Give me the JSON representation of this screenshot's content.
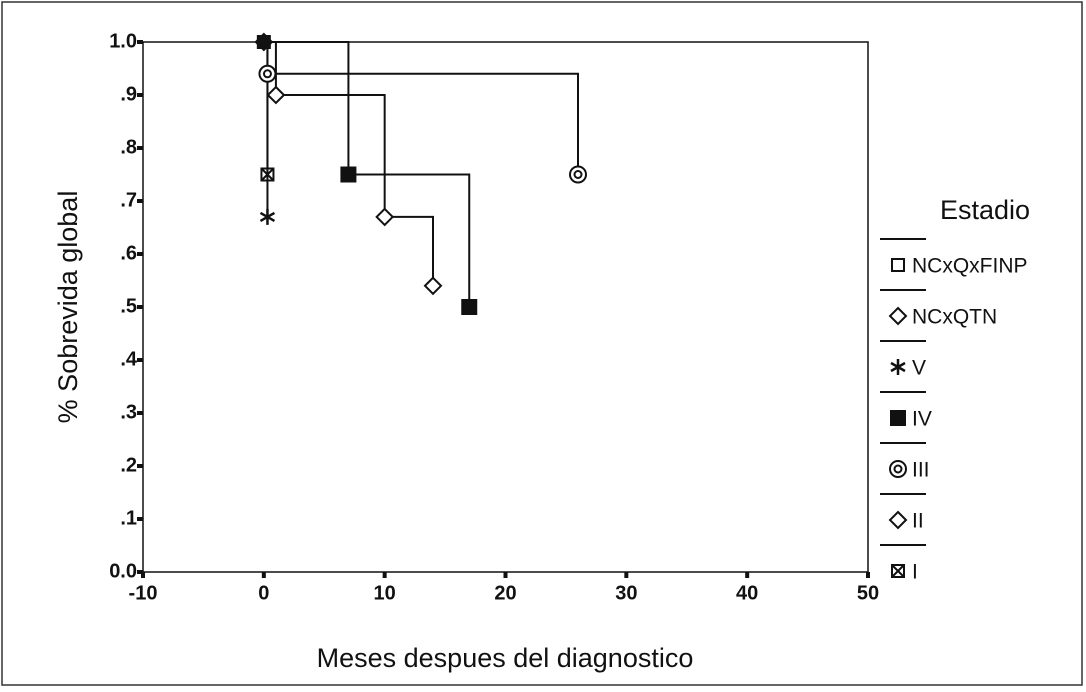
{
  "chart_data": {
    "type": "kaplan-meier",
    "xlabel": "Meses despues del diagnostico",
    "ylabel": "% Sobrevida global",
    "legend_title": "Estadio",
    "legend_position": "right",
    "xlim": [
      -10,
      50
    ],
    "ylim": [
      0,
      1
    ],
    "xticks": [
      -10,
      0,
      10,
      20,
      30,
      40,
      50
    ],
    "yticks": [
      {
        "value": 0,
        "label": "0.0"
      },
      {
        "value": 0.1,
        "label": ".1"
      },
      {
        "value": 0.2,
        "label": ".2"
      },
      {
        "value": 0.3,
        "label": ".3"
      },
      {
        "value": 0.4,
        "label": ".4"
      },
      {
        "value": 0.5,
        "label": ".5"
      },
      {
        "value": 0.6,
        "label": ".6"
      },
      {
        "value": 0.7,
        "label": ".7"
      },
      {
        "value": 0.8,
        "label": ".8"
      },
      {
        "value": 0.9,
        "label": ".9"
      },
      {
        "value": 1,
        "label": "1.0"
      }
    ],
    "series": [
      {
        "name": "NCxQxFINP",
        "marker": "square-open",
        "color": "#111111",
        "x": [
          0
        ],
        "values": [
          1
        ]
      },
      {
        "name": "NCxQTN",
        "marker": "diamond",
        "color": "#111111",
        "x": [
          0
        ],
        "values": [
          1
        ]
      },
      {
        "name": "V",
        "marker": "asterisk",
        "color": "#111111",
        "x": [
          0,
          0.3
        ],
        "values": [
          1,
          0.67
        ]
      },
      {
        "name": "IV",
        "marker": "square-filled",
        "color": "#111111",
        "x": [
          0,
          7,
          17
        ],
        "values": [
          1,
          0.75,
          0.5
        ]
      },
      {
        "name": "III",
        "marker": "target",
        "color": "#111111",
        "x": [
          0,
          0.3,
          26
        ],
        "values": [
          1,
          0.94,
          0.75
        ]
      },
      {
        "name": "II",
        "marker": "diamond",
        "color": "#111111",
        "x": [
          0,
          1,
          10,
          14
        ],
        "values": [
          1,
          0.9,
          0.67,
          0.54
        ]
      },
      {
        "name": "I",
        "marker": "square-cross",
        "color": "#111111",
        "x": [
          0,
          0.3
        ],
        "values": [
          1,
          0.75
        ]
      }
    ]
  }
}
